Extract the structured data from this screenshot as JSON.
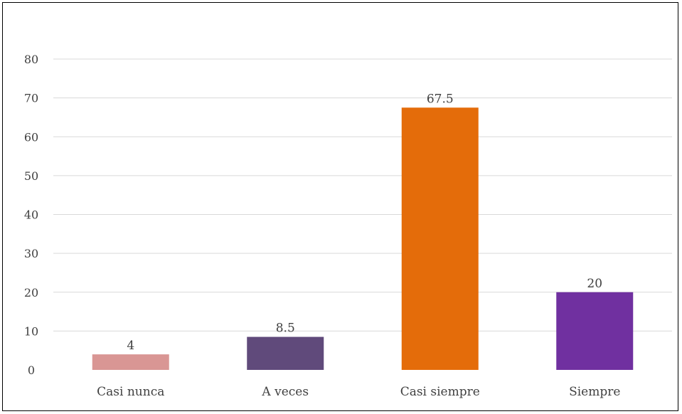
{
  "chart_data": {
    "type": "bar",
    "title": "",
    "xlabel": "",
    "ylabel": "",
    "categories": [
      "Casi nunca",
      "A veces",
      "Casi siempre",
      "Siempre"
    ],
    "values": [
      4,
      8.5,
      67.5,
      20
    ],
    "data_labels": [
      "4",
      "8.5",
      "67.5",
      "20"
    ],
    "colors": [
      "#D99694",
      "#604A7B",
      "#E46C0A",
      "#7030A0"
    ],
    "ylim": [
      0,
      80
    ],
    "yticks": [
      0,
      10,
      20,
      30,
      40,
      50,
      60,
      70,
      80
    ],
    "grid": true,
    "legend": "none"
  }
}
